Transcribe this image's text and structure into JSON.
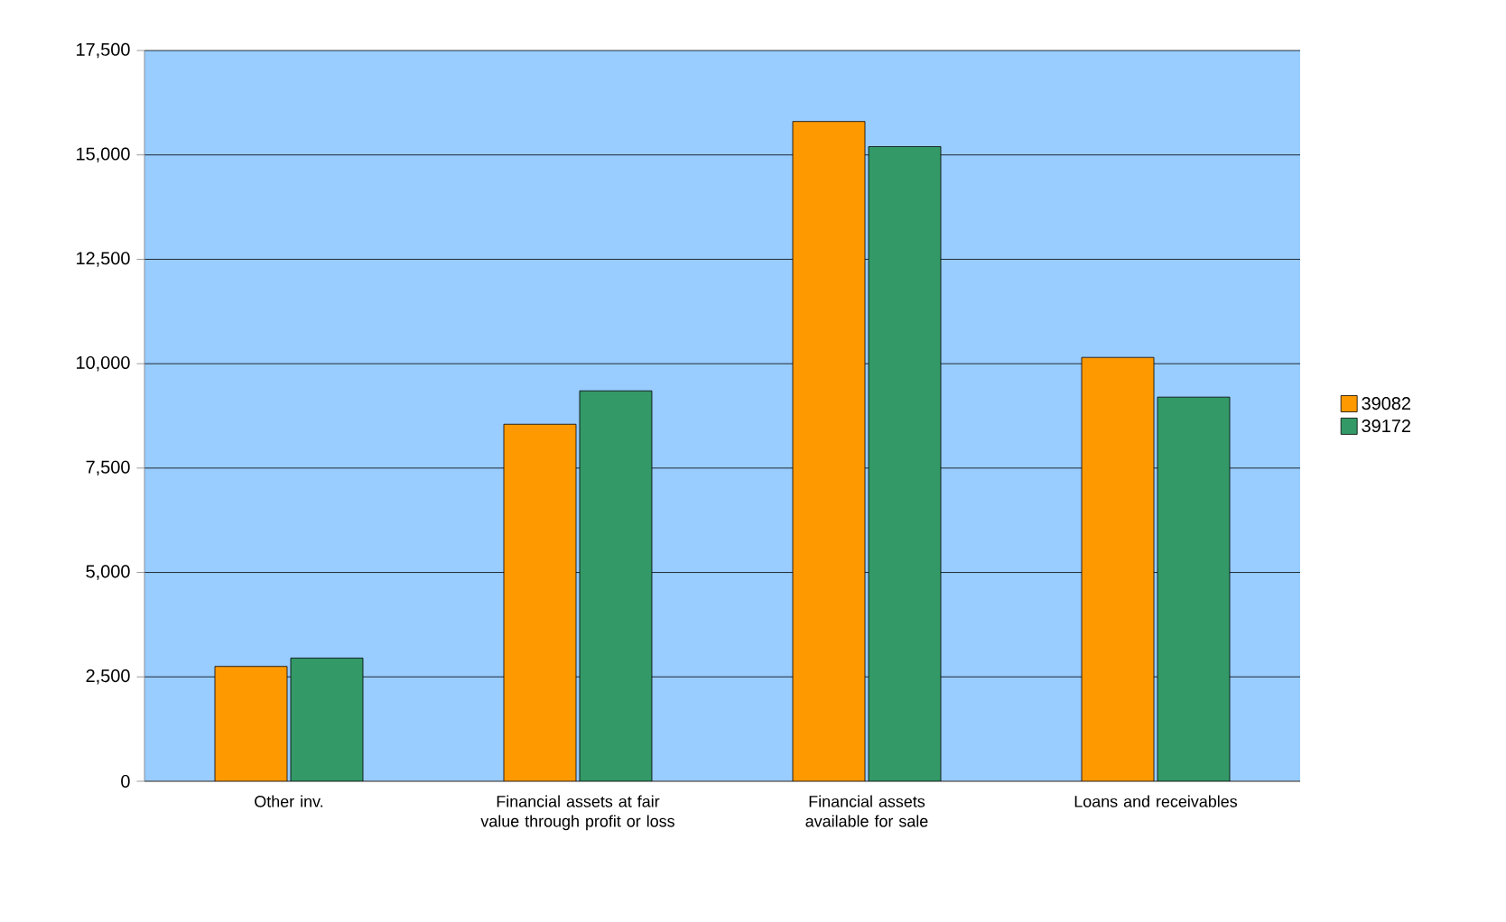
{
  "chart_data": {
    "type": "bar",
    "categories": [
      "Other inv.",
      "Financial assets at fair value through profit or loss",
      "Financial assets available for sale",
      "Loans and receivables"
    ],
    "series": [
      {
        "name": "39082",
        "color": "#ff9900",
        "values": [
          2750,
          8550,
          15800,
          10150
        ]
      },
      {
        "name": "39172",
        "color": "#339966",
        "values": [
          2950,
          9350,
          15200,
          9200
        ]
      }
    ],
    "ylim": [
      0,
      17500
    ],
    "yticks": [
      {
        "value": 0,
        "label": "0"
      },
      {
        "value": 2500,
        "label": "2,500"
      },
      {
        "value": 5000,
        "label": "5,000"
      },
      {
        "value": 7500,
        "label": "7,500"
      },
      {
        "value": 10000,
        "label": "10,000"
      },
      {
        "value": 12500,
        "label": "12,500"
      },
      {
        "value": 15000,
        "label": "15,000"
      },
      {
        "value": 17500,
        "label": "17,500"
      }
    ],
    "grid": "y",
    "legend": "right"
  }
}
